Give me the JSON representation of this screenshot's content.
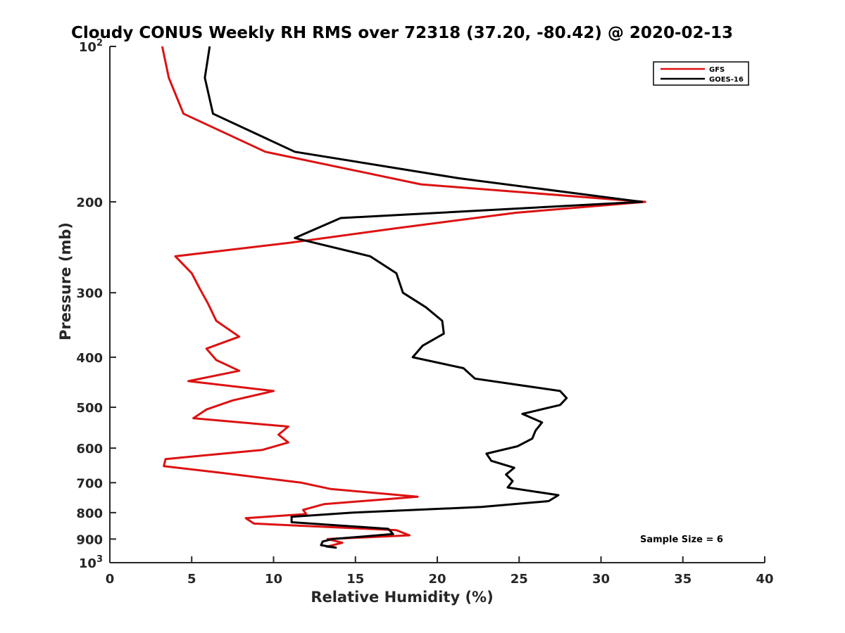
{
  "chart_data": {
    "type": "line",
    "title": "Cloudy CONUS Weekly RH RMS over 72318 (37.20, -80.42) @ 2020-02-13",
    "xlabel": "Relative Humidity (%)",
    "ylabel": "Pressure (mb)",
    "xlim": [
      0,
      40
    ],
    "ylim": [
      100,
      1000
    ],
    "yscale": "log",
    "yreversed": true,
    "x_ticks": [
      0,
      5,
      10,
      15,
      20,
      25,
      30,
      35,
      40
    ],
    "y_ticks": [
      {
        "value": 100,
        "base": "10",
        "exp": "2"
      },
      {
        "value": 200,
        "label": "200"
      },
      {
        "value": 300,
        "label": "300"
      },
      {
        "value": 400,
        "label": "400"
      },
      {
        "value": 500,
        "label": "500"
      },
      {
        "value": 600,
        "label": "600"
      },
      {
        "value": 700,
        "label": "700"
      },
      {
        "value": 800,
        "label": "800"
      },
      {
        "value": 900,
        "label": "900"
      },
      {
        "value": 1000,
        "base": "10",
        "exp": "3"
      }
    ],
    "legend_position": "top-right",
    "annotation": "Sample Size = 6",
    "series": [
      {
        "name": "GFS",
        "color": "#dd1111",
        "points": [
          [
            3.2,
            100
          ],
          [
            3.6,
            115
          ],
          [
            4.5,
            135
          ],
          [
            9.5,
            160
          ],
          [
            19.0,
            185
          ],
          [
            32.7,
            200
          ],
          [
            24.8,
            210
          ],
          [
            17.5,
            225
          ],
          [
            11.0,
            240
          ],
          [
            4.0,
            255
          ],
          [
            5.0,
            275
          ],
          [
            5.5,
            295
          ],
          [
            6.0,
            315
          ],
          [
            6.5,
            340
          ],
          [
            7.9,
            365
          ],
          [
            5.9,
            385
          ],
          [
            6.5,
            405
          ],
          [
            7.9,
            425
          ],
          [
            4.8,
            445
          ],
          [
            10.0,
            465
          ],
          [
            7.5,
            485
          ],
          [
            5.9,
            505
          ],
          [
            5.1,
            525
          ],
          [
            10.9,
            545
          ],
          [
            10.3,
            565
          ],
          [
            10.9,
            585
          ],
          [
            9.3,
            605
          ],
          [
            3.4,
            630
          ],
          [
            3.3,
            650
          ],
          [
            6.8,
            670
          ],
          [
            11.7,
            700
          ],
          [
            13.5,
            720
          ],
          [
            18.8,
            745
          ],
          [
            13.1,
            770
          ],
          [
            11.8,
            790
          ],
          [
            12.0,
            805
          ],
          [
            8.3,
            820
          ],
          [
            8.8,
            840
          ],
          [
            17.5,
            865
          ],
          [
            18.3,
            885
          ],
          [
            13.3,
            900
          ],
          [
            14.2,
            915
          ],
          [
            13.3,
            930
          ]
        ]
      },
      {
        "name": "GOES-16",
        "color": "#000000",
        "points": [
          [
            6.1,
            100
          ],
          [
            5.8,
            115
          ],
          [
            6.3,
            135
          ],
          [
            11.3,
            160
          ],
          [
            21.3,
            180
          ],
          [
            32.5,
            200
          ],
          [
            14.1,
            215
          ],
          [
            11.3,
            235
          ],
          [
            15.9,
            255
          ],
          [
            17.5,
            275
          ],
          [
            17.9,
            300
          ],
          [
            19.3,
            320
          ],
          [
            20.3,
            340
          ],
          [
            20.4,
            360
          ],
          [
            19.1,
            380
          ],
          [
            18.5,
            400
          ],
          [
            21.6,
            420
          ],
          [
            22.3,
            440
          ],
          [
            27.5,
            465
          ],
          [
            27.9,
            480
          ],
          [
            27.5,
            495
          ],
          [
            25.2,
            515
          ],
          [
            26.4,
            535
          ],
          [
            26.0,
            555
          ],
          [
            25.8,
            575
          ],
          [
            24.9,
            595
          ],
          [
            23.0,
            615
          ],
          [
            23.3,
            635
          ],
          [
            24.7,
            655
          ],
          [
            24.2,
            675
          ],
          [
            24.6,
            695
          ],
          [
            24.3,
            715
          ],
          [
            27.4,
            740
          ],
          [
            26.8,
            760
          ],
          [
            22.7,
            780
          ],
          [
            14.8,
            800
          ],
          [
            11.1,
            815
          ],
          [
            11.1,
            835
          ],
          [
            17.0,
            860
          ],
          [
            17.3,
            880
          ],
          [
            13.6,
            900
          ],
          [
            13.0,
            910
          ],
          [
            12.9,
            925
          ],
          [
            13.8,
            935
          ],
          [
            13.2,
            930
          ]
        ]
      }
    ]
  }
}
